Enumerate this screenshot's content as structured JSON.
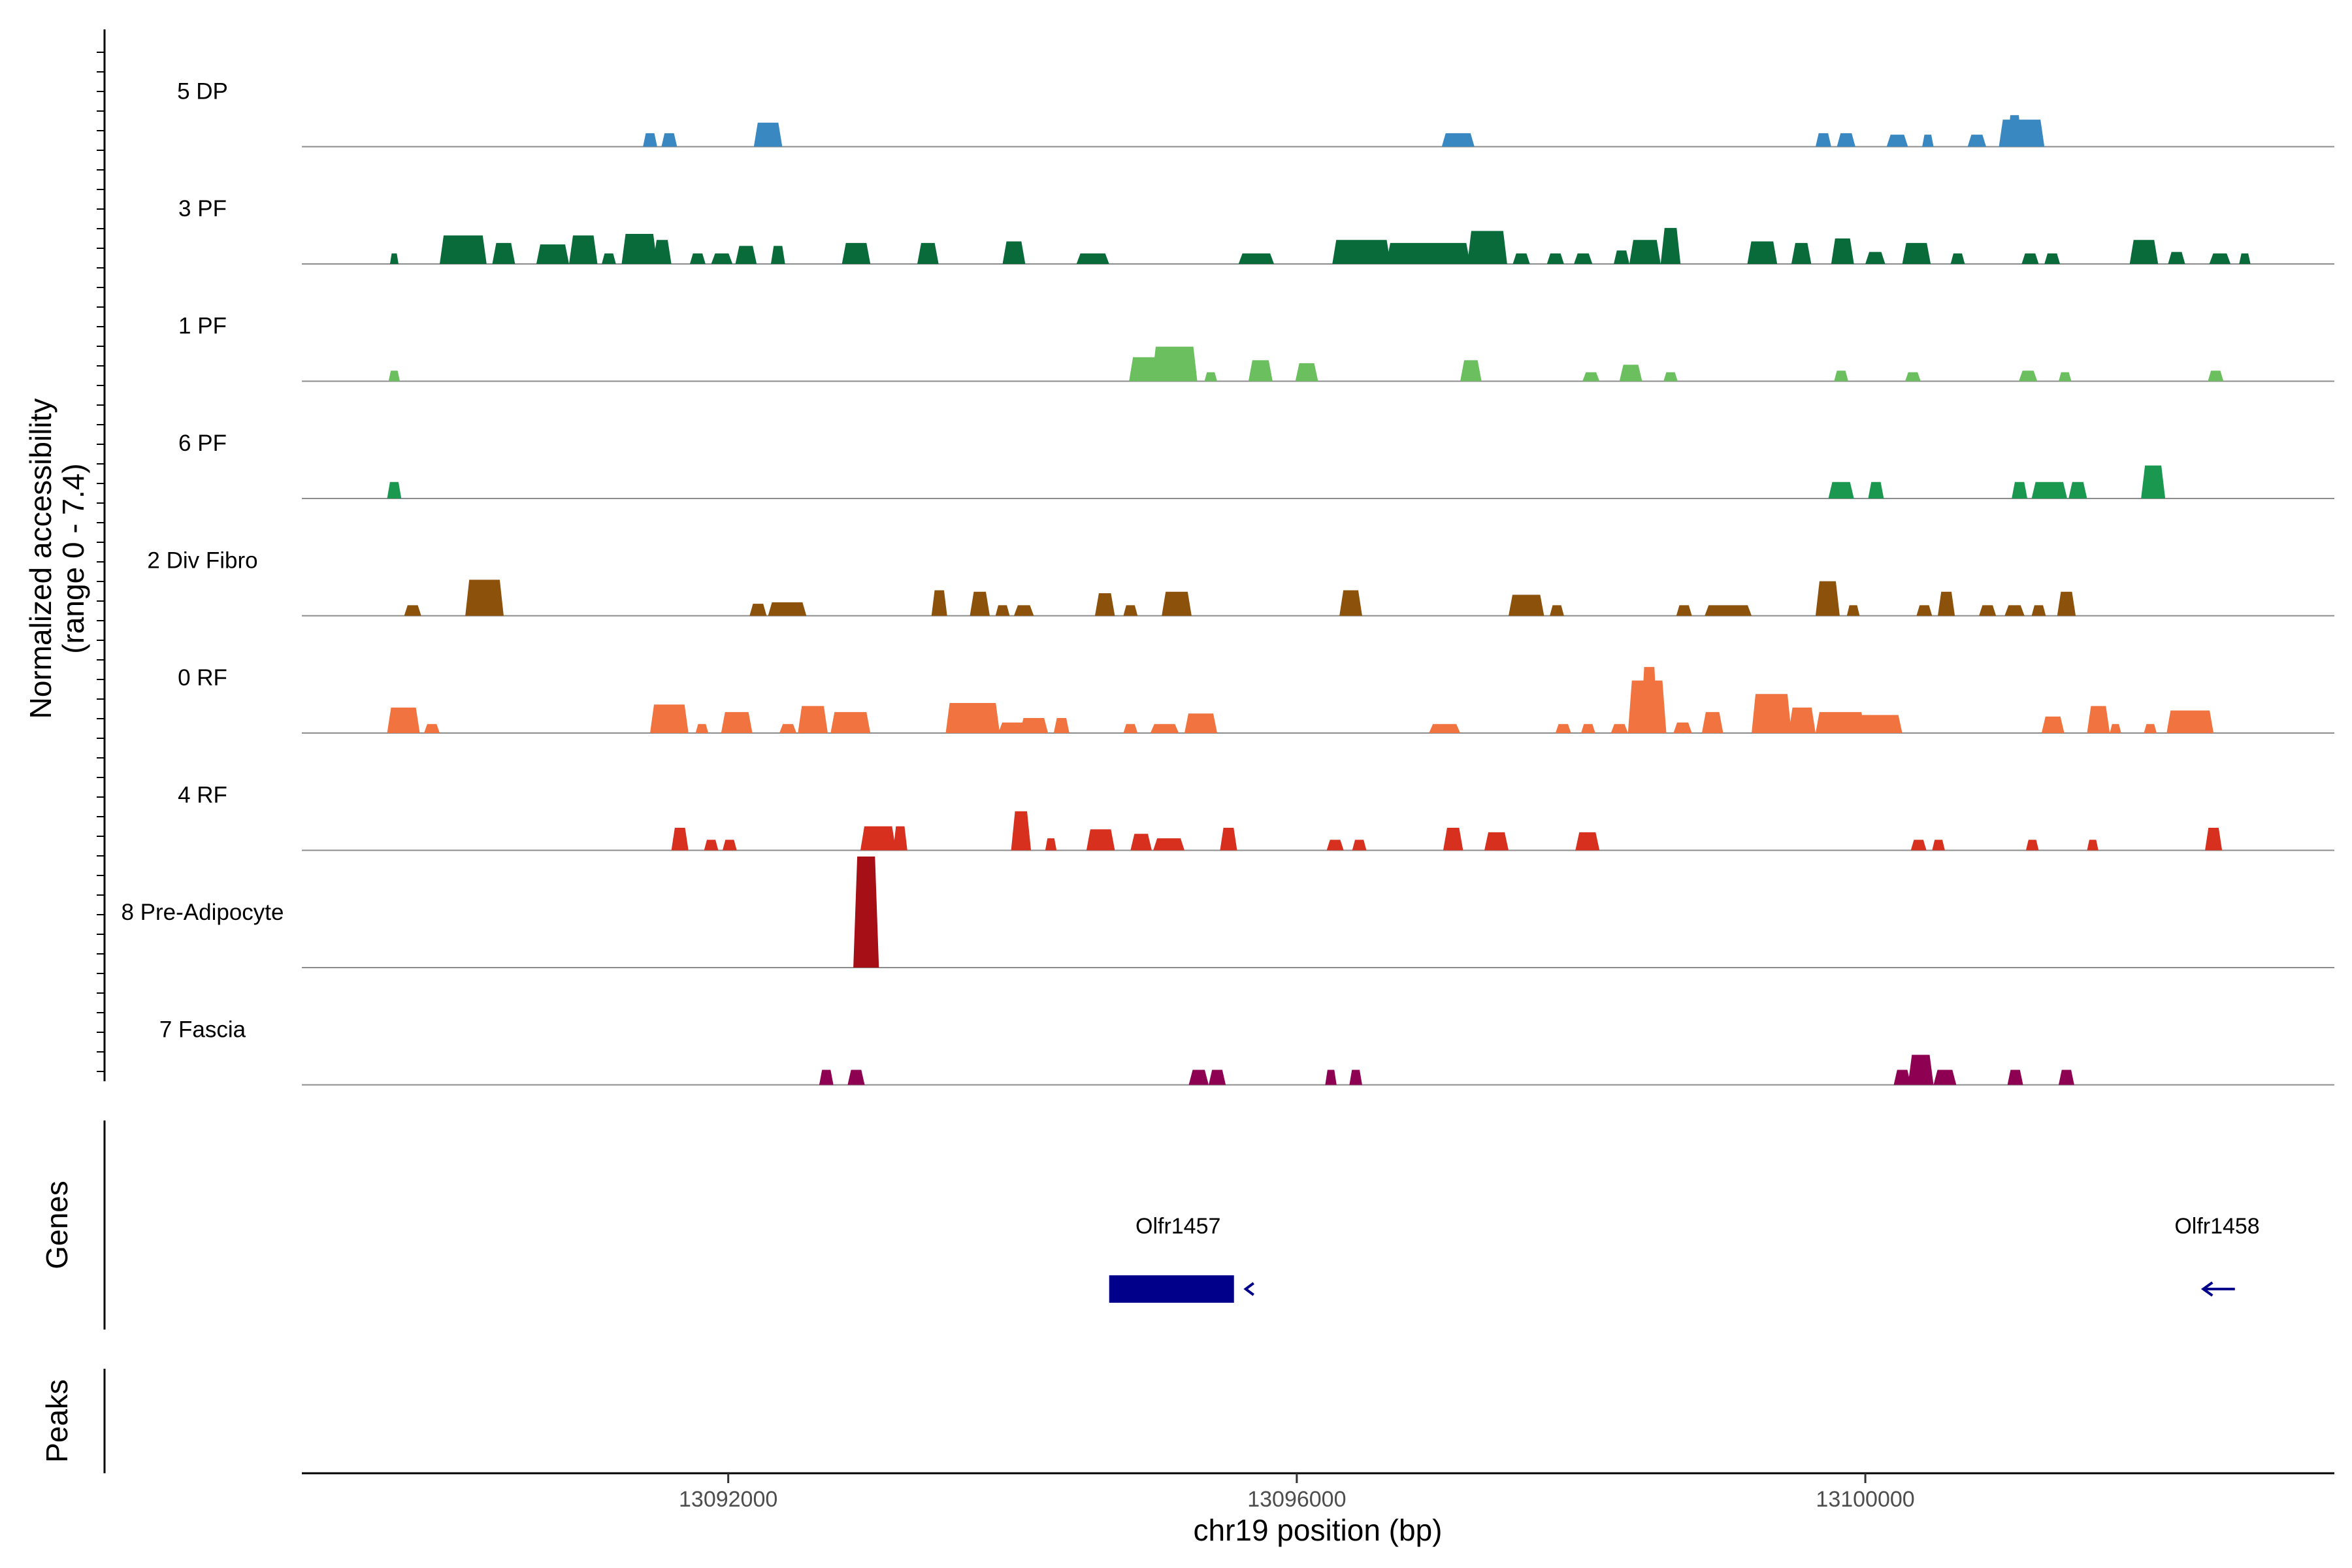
{
  "chart_data": {
    "type": "area",
    "title": "",
    "ylabel_line1": "Normalized accessibility",
    "ylabel_line2": "(range 0 - 7.4)",
    "y_range": [
      0,
      7.4
    ],
    "xlabel": "chr19 position (bp)",
    "xlim": [
      13089000,
      13103300
    ],
    "xticks": [
      13092000,
      13096000,
      13100000
    ],
    "xtick_labels": [
      "13092000",
      "13096000",
      "13100000"
    ],
    "genes_label": "Genes",
    "peaks_label": "Peaks",
    "genes": [
      {
        "name": "Olfr1457",
        "start": 13094680,
        "end": 13095650,
        "strand": "-"
      },
      {
        "name": "Olfr1458",
        "start": 13102350,
        "end": 13102600,
        "strand": "-"
      }
    ],
    "tracks": [
      {
        "name": "5 DP",
        "color": "#3a88c2",
        "peaks": [
          [
            13091400,
            13091500,
            0.9
          ],
          [
            13091530,
            13091640,
            0.9
          ],
          [
            13092180,
            13092380,
            1.6
          ],
          [
            13097020,
            13097250,
            0.9
          ],
          [
            13099650,
            13099760,
            0.9
          ],
          [
            13099800,
            13099930,
            0.9
          ],
          [
            13100150,
            13100300,
            0.8
          ],
          [
            13100400,
            13100480,
            0.8
          ],
          [
            13100720,
            13100850,
            0.8
          ],
          [
            13100940,
            13101260,
            1.8
          ],
          [
            13101000,
            13101100,
            2.1
          ]
        ]
      },
      {
        "name": "3 PF",
        "color": "#0a6b3a",
        "peaks": [
          [
            13089620,
            13089680,
            0.7
          ],
          [
            13089970,
            13090300,
            1.9
          ],
          [
            13090340,
            13090500,
            1.4
          ],
          [
            13090650,
            13090880,
            1.3
          ],
          [
            13090880,
            13091080,
            1.9
          ],
          [
            13091110,
            13091210,
            0.7
          ],
          [
            13091250,
            13091500,
            2.0
          ],
          [
            13091470,
            13091600,
            1.6
          ],
          [
            13091730,
            13091840,
            0.7
          ],
          [
            13091880,
            13092030,
            0.7
          ],
          [
            13092050,
            13092200,
            1.2
          ],
          [
            13092300,
            13092400,
            1.2
          ],
          [
            13092800,
            13093000,
            1.4
          ],
          [
            13093330,
            13093480,
            1.4
          ],
          [
            13093930,
            13094090,
            1.5
          ],
          [
            13094450,
            13094680,
            0.7
          ],
          [
            13095590,
            13095840,
            0.7
          ],
          [
            13096250,
            13096660,
            1.6
          ],
          [
            13096630,
            13097220,
            1.4
          ],
          [
            13097200,
            13097480,
            2.2
          ],
          [
            13097520,
            13097640,
            0.7
          ],
          [
            13097760,
            13097880,
            0.7
          ],
          [
            13097950,
            13098080,
            0.7
          ],
          [
            13098230,
            13098340,
            0.9
          ],
          [
            13098340,
            13098560,
            1.6
          ],
          [
            13098560,
            13098700,
            2.4
          ],
          [
            13099170,
            13099380,
            1.5
          ],
          [
            13099480,
            13099620,
            1.4
          ],
          [
            13099760,
            13099920,
            1.7
          ],
          [
            13100000,
            13100140,
            0.8
          ],
          [
            13100260,
            13100460,
            1.4
          ],
          [
            13100600,
            13100700,
            0.7
          ],
          [
            13101100,
            13101220,
            0.7
          ],
          [
            13101260,
            13101370,
            0.7
          ],
          [
            13101860,
            13102060,
            1.6
          ],
          [
            13102130,
            13102250,
            0.8
          ],
          [
            13102420,
            13102570,
            0.7
          ],
          [
            13102630,
            13102710,
            0.7
          ]
        ]
      },
      {
        "name": "1 PF",
        "color": "#6bbf5f",
        "peaks": [
          [
            13089610,
            13089690,
            0.7
          ],
          [
            13094820,
            13095080,
            1.6
          ],
          [
            13094980,
            13095300,
            2.3
          ],
          [
            13095350,
            13095440,
            0.6
          ],
          [
            13095660,
            13095830,
            1.4
          ],
          [
            13095990,
            13096150,
            1.2
          ],
          [
            13097150,
            13097300,
            1.4
          ],
          [
            13098010,
            13098130,
            0.6
          ],
          [
            13098270,
            13098430,
            1.1
          ],
          [
            13098580,
            13098680,
            0.6
          ],
          [
            13099780,
            13099880,
            0.7
          ],
          [
            13100280,
            13100390,
            0.6
          ],
          [
            13101080,
            13101210,
            0.7
          ],
          [
            13101360,
            13101450,
            0.6
          ],
          [
            13102410,
            13102520,
            0.7
          ]
        ]
      },
      {
        "name": "6 PF",
        "color": "#1a9850",
        "peaks": [
          [
            13089600,
            13089700,
            1.1
          ],
          [
            13099740,
            13099920,
            1.1
          ],
          [
            13100020,
            13100130,
            1.1
          ],
          [
            13101030,
            13101140,
            1.1
          ],
          [
            13101170,
            13101420,
            1.1
          ],
          [
            13101430,
            13101560,
            1.1
          ],
          [
            13101940,
            13102110,
            2.2
          ]
        ]
      },
      {
        "name": "2 Div Fibro",
        "color": "#8c510a",
        "peaks": [
          [
            13089720,
            13089840,
            0.7
          ],
          [
            13090150,
            13090420,
            2.4
          ],
          [
            13092150,
            13092270,
            0.8
          ],
          [
            13092280,
            13092550,
            0.9
          ],
          [
            13093430,
            13093540,
            1.7
          ],
          [
            13093700,
            13093840,
            1.6
          ],
          [
            13093880,
            13093980,
            0.7
          ],
          [
            13094010,
            13094150,
            0.7
          ],
          [
            13094580,
            13094720,
            1.5
          ],
          [
            13094780,
            13094880,
            0.7
          ],
          [
            13095050,
            13095260,
            1.6
          ],
          [
            13096300,
            13096460,
            1.7
          ],
          [
            13097490,
            13097740,
            1.4
          ],
          [
            13097780,
            13097880,
            0.7
          ],
          [
            13098670,
            13098780,
            0.7
          ],
          [
            13098870,
            13099200,
            0.7
          ],
          [
            13099650,
            13099820,
            2.3
          ],
          [
            13099870,
            13099960,
            0.7
          ],
          [
            13100360,
            13100470,
            0.7
          ],
          [
            13100510,
            13100630,
            1.6
          ],
          [
            13100800,
            13100920,
            0.7
          ],
          [
            13100980,
            13101120,
            0.7
          ],
          [
            13101170,
            13101270,
            0.7
          ],
          [
            13101350,
            13101480,
            1.6
          ]
        ]
      },
      {
        "name": "0 RF",
        "color": "#f07340",
        "peaks": [
          [
            13089600,
            13089830,
            1.7
          ],
          [
            13089860,
            13089970,
            0.6
          ],
          [
            13091450,
            13091720,
            1.9
          ],
          [
            13091770,
            13091860,
            0.6
          ],
          [
            13091950,
            13092170,
            1.4
          ],
          [
            13092360,
            13092480,
            0.6
          ],
          [
            13092490,
            13092700,
            1.8
          ],
          [
            13092720,
            13093000,
            1.4
          ],
          [
            13093530,
            13093910,
            2.0
          ],
          [
            13093900,
            13094120,
            0.7
          ],
          [
            13094050,
            13094250,
            1.0
          ],
          [
            13094290,
            13094400,
            1.0
          ],
          [
            13094780,
            13094880,
            0.6
          ],
          [
            13094970,
            13095170,
            0.6
          ],
          [
            13095210,
            13095440,
            1.3
          ],
          [
            13096930,
            13097150,
            0.6
          ],
          [
            13097820,
            13097930,
            0.6
          ],
          [
            13098000,
            13098100,
            0.6
          ],
          [
            13098210,
            13098330,
            0.6
          ],
          [
            13098330,
            13098600,
            3.5
          ],
          [
            13098420,
            13098540,
            4.4
          ],
          [
            13098650,
            13098780,
            0.7
          ],
          [
            13098850,
            13099000,
            1.4
          ],
          [
            13099200,
            13099480,
            2.6
          ],
          [
            13099460,
            13099650,
            1.7
          ],
          [
            13099650,
            13100000,
            1.4
          ],
          [
            13099900,
            13100260,
            1.2
          ],
          [
            13101240,
            13101400,
            1.1
          ],
          [
            13101560,
            13101720,
            1.8
          ],
          [
            13101720,
            13101800,
            0.6
          ],
          [
            13101960,
            13102050,
            0.6
          ],
          [
            13102120,
            13102450,
            1.5
          ]
        ]
      },
      {
        "name": "4 RF",
        "color": "#d7301f",
        "peaks": [
          [
            13091600,
            13091720,
            1.5
          ],
          [
            13091830,
            13091930,
            0.7
          ],
          [
            13091960,
            13092060,
            0.7
          ],
          [
            13092930,
            13093180,
            1.6
          ],
          [
            13093160,
            13093260,
            1.6
          ],
          [
            13093990,
            13094130,
            2.6
          ],
          [
            13094230,
            13094310,
            0.8
          ],
          [
            13094520,
            13094720,
            1.4
          ],
          [
            13094830,
            13094980,
            1.1
          ],
          [
            13094990,
            13095210,
            0.8
          ],
          [
            13095460,
            13095580,
            1.5
          ],
          [
            13096210,
            13096330,
            0.7
          ],
          [
            13096390,
            13096490,
            0.7
          ],
          [
            13097030,
            13097170,
            1.5
          ],
          [
            13097320,
            13097490,
            1.2
          ],
          [
            13097960,
            13098130,
            1.2
          ],
          [
            13100320,
            13100430,
            0.7
          ],
          [
            13100470,
            13100560,
            0.7
          ],
          [
            13101130,
            13101220,
            0.7
          ],
          [
            13101560,
            13101640,
            0.7
          ],
          [
            13102390,
            13102510,
            1.5
          ]
        ]
      },
      {
        "name": "8 Pre-Adipocyte",
        "color": "#a50f15",
        "peaks": [
          [
            13092880,
            13093060,
            7.4
          ]
        ]
      },
      {
        "name": "7 Fascia",
        "color": "#8e0152",
        "peaks": [
          [
            13092640,
            13092740,
            1.0
          ],
          [
            13092840,
            13092960,
            1.0
          ],
          [
            13095240,
            13095380,
            1.0
          ],
          [
            13095380,
            13095500,
            1.0
          ],
          [
            13096200,
            13096280,
            1.0
          ],
          [
            13096370,
            13096460,
            1.0
          ],
          [
            13100200,
            13100320,
            1.0
          ],
          [
            13100300,
            13100480,
            2.0
          ],
          [
            13100480,
            13100640,
            1.0
          ],
          [
            13101000,
            13101110,
            1.0
          ],
          [
            13101360,
            13101470,
            1.0
          ]
        ]
      }
    ]
  }
}
